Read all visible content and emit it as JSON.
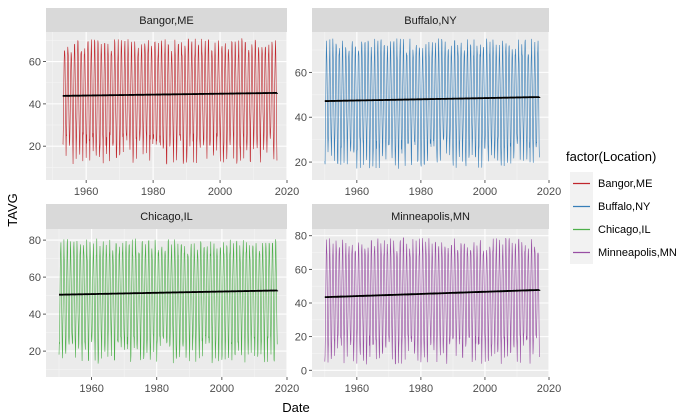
{
  "chart_data": {
    "type": "line",
    "xlabel": "Date",
    "ylabel": "TAVG",
    "legend": {
      "title": "factor(Location)",
      "placement": "right",
      "entries": [
        "Bangor,ME",
        "Buffalo,NY",
        "Chicago,IL",
        "Minneapolis,MN"
      ]
    },
    "grid": true,
    "facets": [
      {
        "name": "Bangor,ME",
        "color": "#c0262c",
        "xlim": [
          1948,
          2020
        ],
        "ylim": [
          4,
          74
        ],
        "xticks": [
          "1960",
          "1980",
          "2000",
          "2020"
        ],
        "yticks": [
          "20",
          "40",
          "60"
        ],
        "series": {
          "x_start": 1953,
          "x_end": 2017,
          "seasonal_min_range": [
            10,
            26
          ],
          "seasonal_max_range": [
            64,
            72
          ]
        },
        "trend": {
          "x": [
            1953,
            2017
          ],
          "y": [
            43.8,
            45.2
          ]
        }
      },
      {
        "name": "Buffalo,NY",
        "color": "#377eb8",
        "xlim": [
          1946,
          2020
        ],
        "ylim": [
          12,
          78
        ],
        "xticks": [
          "1960",
          "1980",
          "2000",
          "2020"
        ],
        "yticks": [
          "20",
          "40",
          "60"
        ],
        "series": {
          "x_start": 1950,
          "x_end": 2017,
          "seasonal_min_range": [
            16,
            30
          ],
          "seasonal_max_range": [
            68,
            76
          ]
        },
        "trend": {
          "x": [
            1950,
            2017
          ],
          "y": [
            47.2,
            49.0
          ]
        }
      },
      {
        "name": "Chicago,IL",
        "color": "#4daf4a",
        "xlim": [
          1946,
          2020
        ],
        "ylim": [
          6,
          86
        ],
        "xticks": [
          "1960",
          "1980",
          "2000",
          "2020"
        ],
        "yticks": [
          "20",
          "40",
          "60",
          "80"
        ],
        "series": {
          "x_start": 1950,
          "x_end": 2017,
          "seasonal_min_range": [
            12,
            28
          ],
          "seasonal_max_range": [
            72,
            82
          ]
        },
        "trend": {
          "x": [
            1950,
            2017
          ],
          "y": [
            50.5,
            52.8
          ]
        }
      },
      {
        "name": "Minneapolis,MN",
        "color": "#984ea3",
        "xlim": [
          1946,
          2020
        ],
        "ylim": [
          -4,
          84
        ],
        "xticks": [
          "1960",
          "1980",
          "2000",
          "2020"
        ],
        "yticks": [
          "0",
          "20",
          "40",
          "60",
          "80"
        ],
        "series": {
          "x_start": 1950,
          "x_end": 2017,
          "seasonal_min_range": [
            2,
            20
          ],
          "seasonal_max_range": [
            70,
            80
          ]
        },
        "trend": {
          "x": [
            1950,
            2017
          ],
          "y": [
            43.5,
            47.8
          ]
        }
      }
    ]
  }
}
